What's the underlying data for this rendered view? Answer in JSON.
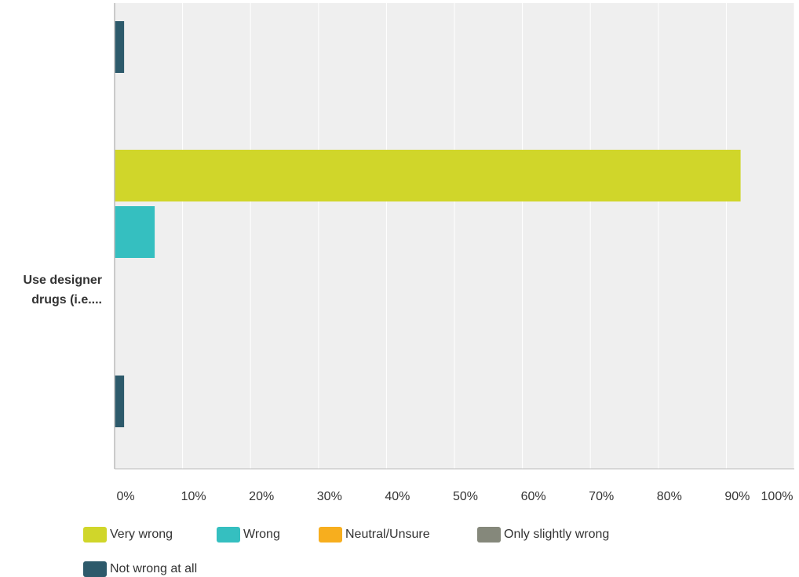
{
  "chart_data": {
    "type": "bar",
    "orientation": "horizontal",
    "categories": [
      "Use designer drugs (i.e...."
    ],
    "category_label_lines": [
      "Use designer",
      "drugs (i.e...."
    ],
    "series": [
      {
        "name": "Very wrong",
        "values": [
          0.921
        ],
        "color": "#d0d62a"
      },
      {
        "name": "Wrong",
        "values": [
          0.059
        ],
        "color": "#35bfc0"
      },
      {
        "name": "Neutral/Unsure",
        "values": [
          0.0
        ],
        "color": "#f7ae1e"
      },
      {
        "name": "Only slightly wrong",
        "values": [
          0.0
        ],
        "color": "#85887b"
      },
      {
        "name": "Not wrong at all",
        "values": [
          0.014
        ],
        "color": "#2d5a6b"
      }
    ],
    "top_partial_bar": {
      "series": "Not wrong at all",
      "value": 0.014
    },
    "xlim": [
      0,
      1
    ],
    "xticks": [
      "0%",
      "10%",
      "20%",
      "30%",
      "40%",
      "50%",
      "60%",
      "70%",
      "80%",
      "90%",
      "100%"
    ],
    "xlabel": "",
    "ylabel": "",
    "title": "",
    "grid": true,
    "legend_placement": "bottom",
    "colors": {
      "plot_background": "#efefef",
      "gridline": "#ffffff",
      "axis": "#bbbbbb",
      "text": "#333333"
    }
  }
}
